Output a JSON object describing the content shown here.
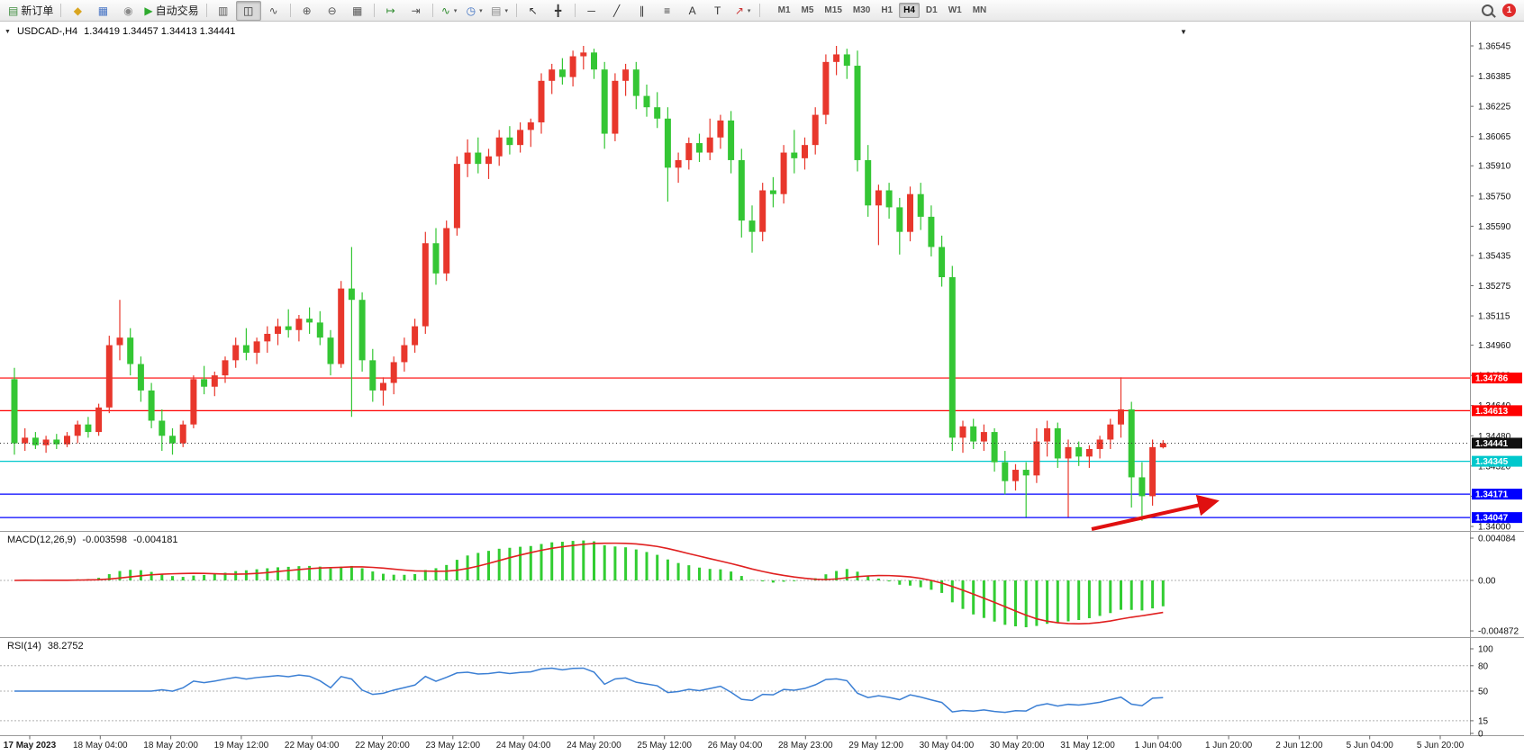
{
  "toolbar": {
    "caret_glyph": "▾",
    "notification_count": "1",
    "icons": {
      "new-order-icon": {
        "g": "▤",
        "c": "#3c8c3c"
      },
      "metaeditor-icon": {
        "g": "◆",
        "c": "#d9a520"
      },
      "charts-icon": {
        "g": "▦",
        "c": "#4472c4"
      },
      "about-icon": {
        "g": "◉",
        "c": "#8a8a8a"
      },
      "autotrading-icon": {
        "g": "▶",
        "c": "#2eaa2e"
      },
      "bars-icon": {
        "g": "▥",
        "c": "#555555"
      },
      "candles-icon": {
        "g": "◫",
        "c": "#333333"
      },
      "linechart-icon": {
        "g": "∿",
        "c": "#555555"
      },
      "zoom-in-icon": {
        "g": "⊕",
        "c": "#555555"
      },
      "zoom-out-icon": {
        "g": "⊖",
        "c": "#555555"
      },
      "tile-icon": {
        "g": "▦",
        "c": "#555555"
      },
      "autoscroll-icon": {
        "g": "↦",
        "c": "#2e8b2e"
      },
      "shift-icon": {
        "g": "⇥",
        "c": "#555555"
      },
      "indicators-icon": {
        "g": "∿",
        "c": "#2e8b2e"
      },
      "periods-icon": {
        "g": "◷",
        "c": "#3a6ec0"
      },
      "templates-icon": {
        "g": "▤",
        "c": "#888888"
      },
      "cursor-icon": {
        "g": "↖",
        "c": "#333333"
      },
      "crosshair-icon": {
        "g": "╋",
        "c": "#333333"
      },
      "hline-icon": {
        "g": "─",
        "c": "#333333"
      },
      "trendline-icon": {
        "g": "╱",
        "c": "#333333"
      },
      "channel-icon": {
        "g": "∥",
        "c": "#333333"
      },
      "fibo-icon": {
        "g": "≡",
        "c": "#333333"
      },
      "text-icon": {
        "g": "A",
        "c": "#333333"
      },
      "label-icon": {
        "g": "T",
        "c": "#333333"
      },
      "arrows-icon": {
        "g": "↗",
        "c": "#cc3333"
      }
    },
    "items": [
      {
        "t": "btn",
        "name": "new-order-button",
        "icon": "new-order-icon",
        "label": "新订单"
      },
      {
        "t": "sep"
      },
      {
        "t": "btn",
        "name": "metaeditor-button",
        "icon": "metaeditor-icon"
      },
      {
        "t": "btn",
        "name": "charts-button",
        "icon": "charts-icon"
      },
      {
        "t": "btn",
        "name": "about-button",
        "icon": "about-icon"
      },
      {
        "t": "btn",
        "name": "autotrading-button",
        "icon": "autotrading-icon",
        "label": "自动交易"
      },
      {
        "t": "sep"
      },
      {
        "t": "btn",
        "name": "bar-chart-button",
        "icon": "bars-icon"
      },
      {
        "t": "btn",
        "name": "candle-chart-button",
        "icon": "candles-icon",
        "active": true
      },
      {
        "t": "btn",
        "name": "line-chart-button",
        "icon": "linechart-icon"
      },
      {
        "t": "sep"
      },
      {
        "t": "btn",
        "name": "zoom-in-button",
        "icon": "zoom-in-icon"
      },
      {
        "t": "btn",
        "name": "zoom-out-button",
        "icon": "zoom-out-icon"
      },
      {
        "t": "btn",
        "name": "tile-windows-button",
        "icon": "tile-icon"
      },
      {
        "t": "sep"
      },
      {
        "t": "btn",
        "name": "auto-scroll-button",
        "icon": "autoscroll-icon"
      },
      {
        "t": "btn",
        "name": "chart-shift-button",
        "icon": "shift-icon"
      },
      {
        "t": "sep"
      },
      {
        "t": "btn",
        "name": "indicators-button",
        "icon": "indicators-icon",
        "dd": true
      },
      {
        "t": "btn",
        "name": "periods-button",
        "icon": "periods-icon",
        "dd": true
      },
      {
        "t": "btn",
        "name": "templates-button",
        "icon": "templates-icon",
        "dd": true
      },
      {
        "t": "sep"
      },
      {
        "t": "btn",
        "name": "cursor-button",
        "icon": "cursor-icon"
      },
      {
        "t": "btn",
        "name": "crosshair-button",
        "icon": "crosshair-icon"
      },
      {
        "t": "sep"
      },
      {
        "t": "btn",
        "name": "hline-button",
        "icon": "hline-icon"
      },
      {
        "t": "btn",
        "name": "trendline-button",
        "icon": "trendline-icon"
      },
      {
        "t": "btn",
        "name": "channel-button",
        "icon": "channel-icon"
      },
      {
        "t": "btn",
        "name": "fibonacci-button",
        "icon": "fibo-icon"
      },
      {
        "t": "btn",
        "name": "text-button",
        "icon": "text-icon"
      },
      {
        "t": "btn",
        "name": "label-button",
        "icon": "label-icon"
      },
      {
        "t": "btn",
        "name": "arrows-button",
        "icon": "arrows-icon",
        "dd": true
      },
      {
        "t": "sep"
      }
    ],
    "timeframes": {
      "options": [
        "M1",
        "M5",
        "M15",
        "M30",
        "H1",
        "H4",
        "D1",
        "W1",
        "MN"
      ],
      "active": "H4"
    }
  },
  "chart": {
    "title_marker": "▼",
    "title_symbol": "USDCAD-,H4",
    "title_ohlc": "1.34419 1.34457 1.34413 1.34441",
    "corner_marker": "▼"
  },
  "chart_data": {
    "type": "candlestick",
    "symbol": "USDCAD-",
    "timeframe": "H4",
    "current_bar": {
      "open": 1.34419,
      "high": 1.34457,
      "low": 1.34413,
      "close": 1.34441
    },
    "ylim": [
      1.3397,
      1.3659
    ],
    "grid": false,
    "colors": {
      "bull": "#e8372c",
      "bear": "#34c634",
      "macd_hist": "#32cd32",
      "macd_signal": "#e02020",
      "rsi_line": "#3b7fd4",
      "bid": "#111111"
    },
    "price_axis_ticks": [
      "1.36545",
      "1.36385",
      "1.36225",
      "1.36065",
      "1.35910",
      "1.35750",
      "1.35590",
      "1.35435",
      "1.35275",
      "1.35115",
      "1.34960",
      "1.34800",
      "1.34640",
      "1.34480",
      "1.34320",
      "1.34160",
      "1.34000"
    ],
    "time_labels": [
      "17 May 2023",
      "18 May 04:00",
      "18 May 20:00",
      "19 May 12:00",
      "22 May 04:00",
      "22 May 20:00",
      "23 May 12:00",
      "24 May 04:00",
      "24 May 20:00",
      "25 May 12:00",
      "26 May 04:00",
      "28 May 23:00",
      "29 May 12:00",
      "30 May 04:00",
      "30 May 20:00",
      "31 May 12:00",
      "1 Jun 04:00",
      "1 Jun 20:00",
      "2 Jun 12:00",
      "5 Jun 04:00",
      "5 Jun 20:00"
    ],
    "hlines": [
      {
        "price": 1.34786,
        "label": "1.34786",
        "color": "#ff0000"
      },
      {
        "price": 1.34613,
        "label": "1.34613",
        "color": "#ff0000"
      },
      {
        "price": 1.34345,
        "label": "1.34345",
        "color": "#00c8cc"
      },
      {
        "price": 1.34171,
        "label": "1.34171",
        "color": "#0000ff"
      },
      {
        "price": 1.34047,
        "label": "1.34047",
        "color": "#0000ff"
      }
    ],
    "bid_line": {
      "price": 1.34441,
      "label": "1.34441",
      "color": "#111111"
    },
    "arrow_annotation": {
      "color": "#e01010"
    },
    "macd": {
      "label": "MACD(12,26,9)",
      "value_main": "-0.003598",
      "value_signal": "-0.004181",
      "params": [
        12,
        26,
        9
      ],
      "axis_labels": [
        "0.004084",
        "0.00",
        "-0.004872"
      ]
    },
    "rsi": {
      "label": "RSI(14)",
      "value": "38.2752",
      "period": 14,
      "axis_labels": [
        "100",
        "80",
        "50",
        "15",
        "0"
      ],
      "levels": [
        80,
        50,
        15
      ]
    },
    "candles": [
      [
        1.3478,
        1.3484,
        1.3438,
        1.3444
      ],
      [
        1.3444,
        1.3452,
        1.344,
        1.3447
      ],
      [
        1.3447,
        1.345,
        1.3441,
        1.3443
      ],
      [
        1.3443,
        1.3448,
        1.3439,
        1.3446
      ],
      [
        1.3446,
        1.3449,
        1.3441,
        1.34435
      ],
      [
        1.34435,
        1.345,
        1.3442,
        1.3448
      ],
      [
        1.3448,
        1.3456,
        1.3444,
        1.3454
      ],
      [
        1.3454,
        1.3458,
        1.3447,
        1.345
      ],
      [
        1.345,
        1.3465,
        1.3448,
        1.3463
      ],
      [
        1.3463,
        1.3501,
        1.346,
        1.3496
      ],
      [
        1.3496,
        1.352,
        1.3488,
        1.35
      ],
      [
        1.35,
        1.3505,
        1.348,
        1.3486
      ],
      [
        1.3486,
        1.349,
        1.3466,
        1.3472
      ],
      [
        1.3472,
        1.3476,
        1.3452,
        1.3456
      ],
      [
        1.3456,
        1.3462,
        1.344,
        1.3448
      ],
      [
        1.3448,
        1.3452,
        1.3438,
        1.3444
      ],
      [
        1.3444,
        1.3456,
        1.3442,
        1.3454
      ],
      [
        1.3454,
        1.348,
        1.3452,
        1.3478
      ],
      [
        1.3478,
        1.3485,
        1.347,
        1.3474
      ],
      [
        1.3474,
        1.3482,
        1.3469,
        1.348
      ],
      [
        1.348,
        1.349,
        1.3476,
        1.3488
      ],
      [
        1.3488,
        1.35,
        1.3484,
        1.3496
      ],
      [
        1.3496,
        1.3505,
        1.3488,
        1.3492
      ],
      [
        1.3492,
        1.35,
        1.3486,
        1.3498
      ],
      [
        1.3498,
        1.3506,
        1.3492,
        1.3502
      ],
      [
        1.3502,
        1.351,
        1.3496,
        1.3506
      ],
      [
        1.3506,
        1.3515,
        1.35,
        1.3504
      ],
      [
        1.3504,
        1.3512,
        1.3498,
        1.351
      ],
      [
        1.351,
        1.3516,
        1.3502,
        1.3508
      ],
      [
        1.3508,
        1.3514,
        1.3496,
        1.35
      ],
      [
        1.35,
        1.3504,
        1.348,
        1.3486
      ],
      [
        1.3486,
        1.353,
        1.3484,
        1.3526
      ],
      [
        1.3526,
        1.3548,
        1.3458,
        1.352
      ],
      [
        1.352,
        1.3524,
        1.3482,
        1.3488
      ],
      [
        1.3488,
        1.3494,
        1.3466,
        1.3472
      ],
      [
        1.3472,
        1.3479,
        1.3464,
        1.3476
      ],
      [
        1.3476,
        1.349,
        1.347,
        1.3487
      ],
      [
        1.3487,
        1.35,
        1.3482,
        1.3496
      ],
      [
        1.3496,
        1.351,
        1.3492,
        1.3506
      ],
      [
        1.3506,
        1.3556,
        1.3502,
        1.355
      ],
      [
        1.355,
        1.3558,
        1.3528,
        1.3534
      ],
      [
        1.3534,
        1.3562,
        1.353,
        1.3558
      ],
      [
        1.3558,
        1.3596,
        1.3554,
        1.3592
      ],
      [
        1.3592,
        1.3605,
        1.3585,
        1.3598
      ],
      [
        1.3598,
        1.3606,
        1.3587,
        1.3592
      ],
      [
        1.3592,
        1.36,
        1.3584,
        1.3596
      ],
      [
        1.3596,
        1.361,
        1.3591,
        1.3606
      ],
      [
        1.3606,
        1.3612,
        1.3597,
        1.3602
      ],
      [
        1.3602,
        1.3614,
        1.3598,
        1.361
      ],
      [
        1.361,
        1.3616,
        1.3601,
        1.3614
      ],
      [
        1.3614,
        1.364,
        1.3608,
        1.3636
      ],
      [
        1.3636,
        1.3645,
        1.3629,
        1.3642
      ],
      [
        1.3642,
        1.3648,
        1.3634,
        1.3638
      ],
      [
        1.3638,
        1.3652,
        1.3633,
        1.3649
      ],
      [
        1.3649,
        1.36545,
        1.3642,
        1.3651
      ],
      [
        1.3651,
        1.3653,
        1.3637,
        1.3642
      ],
      [
        1.3642,
        1.3646,
        1.36,
        1.3608
      ],
      [
        1.3608,
        1.364,
        1.3604,
        1.3636
      ],
      [
        1.3636,
        1.3645,
        1.3628,
        1.3642
      ],
      [
        1.3642,
        1.3646,
        1.3621,
        1.3628
      ],
      [
        1.3628,
        1.3634,
        1.3617,
        1.3622
      ],
      [
        1.3622,
        1.363,
        1.3611,
        1.3616
      ],
      [
        1.3616,
        1.3622,
        1.3572,
        1.359
      ],
      [
        1.359,
        1.3598,
        1.3582,
        1.3594
      ],
      [
        1.3594,
        1.3606,
        1.3589,
        1.3603
      ],
      [
        1.3603,
        1.3608,
        1.3593,
        1.3598
      ],
      [
        1.3598,
        1.3616,
        1.3594,
        1.3606
      ],
      [
        1.3606,
        1.3618,
        1.36,
        1.3615
      ],
      [
        1.3615,
        1.362,
        1.3587,
        1.3594
      ],
      [
        1.3594,
        1.36,
        1.3553,
        1.3562
      ],
      [
        1.3562,
        1.357,
        1.3545,
        1.3556
      ],
      [
        1.3556,
        1.3582,
        1.3551,
        1.3578
      ],
      [
        1.3578,
        1.3585,
        1.3569,
        1.3576
      ],
      [
        1.3576,
        1.3602,
        1.3571,
        1.3598
      ],
      [
        1.3598,
        1.361,
        1.3587,
        1.3595
      ],
      [
        1.3595,
        1.3606,
        1.3589,
        1.3602
      ],
      [
        1.3602,
        1.3622,
        1.3597,
        1.3618
      ],
      [
        1.3618,
        1.365,
        1.3613,
        1.3646
      ],
      [
        1.3646,
        1.36545,
        1.3639,
        1.365
      ],
      [
        1.365,
        1.3653,
        1.3637,
        1.3644
      ],
      [
        1.3644,
        1.3652,
        1.3588,
        1.3594
      ],
      [
        1.3594,
        1.3602,
        1.3564,
        1.357
      ],
      [
        1.357,
        1.3581,
        1.3549,
        1.3578
      ],
      [
        1.3578,
        1.3582,
        1.3563,
        1.3569
      ],
      [
        1.3569,
        1.3574,
        1.3544,
        1.3556
      ],
      [
        1.3556,
        1.358,
        1.3551,
        1.3576
      ],
      [
        1.3576,
        1.3582,
        1.3557,
        1.3564
      ],
      [
        1.3564,
        1.357,
        1.3543,
        1.3548
      ],
      [
        1.3548,
        1.3554,
        1.3527,
        1.3532
      ],
      [
        1.3532,
        1.3538,
        1.344,
        1.3447
      ],
      [
        1.3447,
        1.3456,
        1.3439,
        1.3453
      ],
      [
        1.3453,
        1.3457,
        1.3441,
        1.3445
      ],
      [
        1.3445,
        1.3454,
        1.344,
        1.345
      ],
      [
        1.345,
        1.3452,
        1.3429,
        1.3434
      ],
      [
        1.3434,
        1.344,
        1.3417,
        1.3424
      ],
      [
        1.3424,
        1.3433,
        1.3419,
        1.343
      ],
      [
        1.343,
        1.3434,
        1.3405,
        1.3427
      ],
      [
        1.3427,
        1.3452,
        1.3423,
        1.3445
      ],
      [
        1.3445,
        1.3456,
        1.3437,
        1.3452
      ],
      [
        1.3452,
        1.3455,
        1.3431,
        1.3436
      ],
      [
        1.3436,
        1.3446,
        1.3405,
        1.3442
      ],
      [
        1.3442,
        1.3445,
        1.3432,
        1.3437
      ],
      [
        1.3437,
        1.3443,
        1.3431,
        1.3441
      ],
      [
        1.3441,
        1.3448,
        1.3436,
        1.3446
      ],
      [
        1.3446,
        1.3457,
        1.3441,
        1.3454
      ],
      [
        1.3454,
        1.3479,
        1.3447,
        1.3462
      ],
      [
        1.3462,
        1.3466,
        1.341,
        1.3426
      ],
      [
        1.3426,
        1.3434,
        1.3403,
        1.3416
      ],
      [
        1.3416,
        1.3446,
        1.3411,
        1.3442
      ],
      [
        1.34419,
        1.34457,
        1.34413,
        1.34441
      ]
    ]
  }
}
